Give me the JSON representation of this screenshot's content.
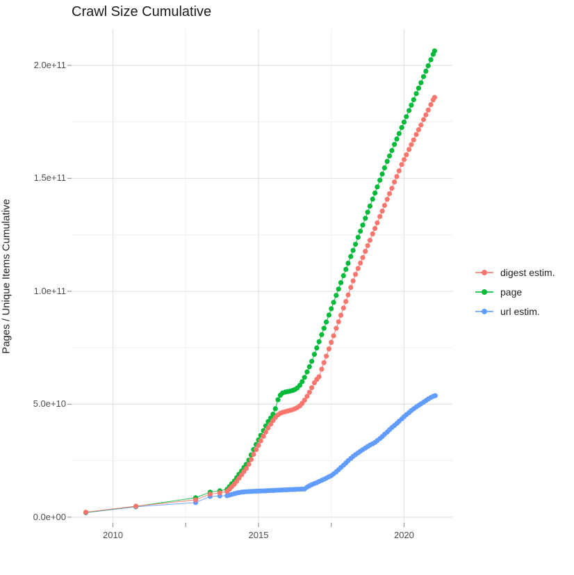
{
  "chart_data": {
    "type": "scatter",
    "title": "Crawl Size Cumulative",
    "xlabel": "",
    "ylabel": "Pages / Unique Items Cumulative",
    "value_unit": "items (point values stored in billions, i.e. 1e9)",
    "xlim": [
      2008.58,
      2021.66
    ],
    "ylim_billions": [
      -2.5,
      216
    ],
    "grid": "major and minor gridlines, light gray on white",
    "legend_position": "right",
    "x_axis": {
      "ticks": [
        {
          "v": 2010,
          "label": "2010"
        },
        {
          "v": 2015,
          "label": "2015"
        },
        {
          "v": 2020,
          "label": "2020"
        }
      ],
      "minors": [
        2012.5,
        2017.5
      ]
    },
    "y_axis": {
      "title": "Pages / Unique Items Cumulative",
      "ticks": [
        {
          "v": 0,
          "label": "0.0e+00"
        },
        {
          "v": 50,
          "label": "5.0e+10"
        },
        {
          "v": 100,
          "label": "1.0e+11"
        },
        {
          "v": 150,
          "label": "1.5e+11"
        },
        {
          "v": 200,
          "label": "2.0e+11"
        }
      ],
      "minors": [
        25,
        75,
        125,
        175
      ]
    },
    "draw_order": [
      2,
      1,
      0
    ],
    "series": [
      {
        "name": "digest estim.",
        "color": "#F8766D",
        "points": [
          [
            2009.07,
            2.2
          ],
          [
            2010.79,
            4.9
          ],
          [
            2012.84,
            7.7
          ],
          [
            2013.34,
            10.2
          ],
          [
            2013.67,
            10.8
          ],
          [
            2013.92,
            11.4
          ],
          [
            2014.0,
            12.4
          ],
          [
            2014.08,
            13.5
          ],
          [
            2014.17,
            14.6
          ],
          [
            2014.25,
            15.9
          ],
          [
            2014.33,
            17.3
          ],
          [
            2014.42,
            18.8
          ],
          [
            2014.5,
            20.2
          ],
          [
            2014.58,
            21.6
          ],
          [
            2014.67,
            23.4
          ],
          [
            2014.75,
            25.5
          ],
          [
            2014.83,
            27.8
          ],
          [
            2014.92,
            29.9
          ],
          [
            2015.0,
            31.8
          ],
          [
            2015.08,
            33.8
          ],
          [
            2015.17,
            35.8
          ],
          [
            2015.25,
            37.7
          ],
          [
            2015.33,
            39.5
          ],
          [
            2015.42,
            41.2
          ],
          [
            2015.5,
            42.8
          ],
          [
            2015.58,
            44.2
          ],
          [
            2015.67,
            45.3
          ],
          [
            2015.75,
            46.0
          ],
          [
            2015.83,
            46.4
          ],
          [
            2015.92,
            46.7
          ],
          [
            2016.0,
            47.0
          ],
          [
            2016.08,
            47.3
          ],
          [
            2016.17,
            47.6
          ],
          [
            2016.25,
            48.0
          ],
          [
            2016.33,
            48.5
          ],
          [
            2016.42,
            49.3
          ],
          [
            2016.5,
            50.4
          ],
          [
            2016.58,
            51.8
          ],
          [
            2016.67,
            53.5
          ],
          [
            2016.75,
            55.3
          ],
          [
            2016.83,
            57.3
          ],
          [
            2016.92,
            59.5
          ],
          [
            2017.0,
            61.0
          ],
          [
            2017.08,
            62.2
          ],
          [
            2017.17,
            65.5
          ],
          [
            2017.25,
            68.4
          ],
          [
            2017.33,
            71.3
          ],
          [
            2017.42,
            74.5
          ],
          [
            2017.5,
            77.4
          ],
          [
            2017.58,
            80.3
          ],
          [
            2017.67,
            83.6
          ],
          [
            2017.75,
            86.5
          ],
          [
            2017.83,
            89.4
          ],
          [
            2017.92,
            92.6
          ],
          [
            2018.0,
            95.5
          ],
          [
            2018.08,
            98.4
          ],
          [
            2018.17,
            101.7
          ],
          [
            2018.25,
            104.6
          ],
          [
            2018.33,
            107.5
          ],
          [
            2018.42,
            110.1
          ],
          [
            2018.5,
            112.5
          ],
          [
            2018.58,
            114.9
          ],
          [
            2018.67,
            117.7
          ],
          [
            2018.75,
            120.2
          ],
          [
            2018.83,
            122.6
          ],
          [
            2018.92,
            125.4
          ],
          [
            2019.0,
            127.8
          ],
          [
            2019.08,
            130.3
          ],
          [
            2019.17,
            133.1
          ],
          [
            2019.25,
            135.5
          ],
          [
            2019.33,
            138.0
          ],
          [
            2019.42,
            140.7
          ],
          [
            2019.5,
            143.2
          ],
          [
            2019.58,
            145.6
          ],
          [
            2019.67,
            148.4
          ],
          [
            2019.75,
            150.8
          ],
          [
            2019.83,
            153.3
          ],
          [
            2019.92,
            156.1
          ],
          [
            2020.0,
            158.3
          ],
          [
            2020.08,
            160.4
          ],
          [
            2020.17,
            162.8
          ],
          [
            2020.25,
            164.9
          ],
          [
            2020.33,
            167.0
          ],
          [
            2020.42,
            169.4
          ],
          [
            2020.5,
            171.5
          ],
          [
            2020.58,
            173.6
          ],
          [
            2020.67,
            176.0
          ],
          [
            2020.75,
            178.1
          ],
          [
            2020.83,
            180.2
          ],
          [
            2020.92,
            182.6
          ],
          [
            2021.0,
            184.7
          ],
          [
            2021.05,
            185.8
          ]
        ]
      },
      {
        "name": "page",
        "color": "#00BA38",
        "points": [
          [
            2009.07,
            2.1
          ],
          [
            2010.79,
            4.8
          ],
          [
            2012.84,
            8.6
          ],
          [
            2013.34,
            11.1
          ],
          [
            2013.67,
            11.7
          ],
          [
            2013.92,
            12.3
          ],
          [
            2014.0,
            13.5
          ],
          [
            2014.08,
            14.8
          ],
          [
            2014.17,
            16.0
          ],
          [
            2014.25,
            17.5
          ],
          [
            2014.33,
            19.0
          ],
          [
            2014.42,
            20.5
          ],
          [
            2014.5,
            22.0
          ],
          [
            2014.58,
            23.4
          ],
          [
            2014.67,
            25.3
          ],
          [
            2014.75,
            27.6
          ],
          [
            2014.83,
            30.0
          ],
          [
            2014.92,
            32.2
          ],
          [
            2015.0,
            34.2
          ],
          [
            2015.08,
            36.2
          ],
          [
            2015.17,
            38.3
          ],
          [
            2015.25,
            40.4
          ],
          [
            2015.33,
            42.3
          ],
          [
            2015.42,
            43.9
          ],
          [
            2015.5,
            45.6
          ],
          [
            2015.58,
            48.0
          ],
          [
            2015.67,
            52.0
          ],
          [
            2015.75,
            54.0
          ],
          [
            2015.83,
            55.0
          ],
          [
            2015.92,
            55.4
          ],
          [
            2016.0,
            55.6
          ],
          [
            2016.08,
            55.8
          ],
          [
            2016.17,
            56.1
          ],
          [
            2016.25,
            56.5
          ],
          [
            2016.33,
            57.2
          ],
          [
            2016.42,
            58.4
          ],
          [
            2016.5,
            60.0
          ],
          [
            2016.58,
            61.9
          ],
          [
            2016.67,
            64.3
          ],
          [
            2016.75,
            66.6
          ],
          [
            2016.83,
            69.0
          ],
          [
            2016.92,
            72.1
          ],
          [
            2017.0,
            74.9
          ],
          [
            2017.08,
            77.7
          ],
          [
            2017.17,
            80.8
          ],
          [
            2017.25,
            83.6
          ],
          [
            2017.33,
            86.4
          ],
          [
            2017.42,
            89.5
          ],
          [
            2017.5,
            92.3
          ],
          [
            2017.58,
            95.1
          ],
          [
            2017.67,
            98.2
          ],
          [
            2017.75,
            101.0
          ],
          [
            2017.83,
            103.8
          ],
          [
            2017.92,
            106.9
          ],
          [
            2018.0,
            109.7
          ],
          [
            2018.08,
            112.4
          ],
          [
            2018.17,
            115.4
          ],
          [
            2018.25,
            118.1
          ],
          [
            2018.33,
            120.8
          ],
          [
            2018.42,
            123.9
          ],
          [
            2018.5,
            126.6
          ],
          [
            2018.58,
            129.3
          ],
          [
            2018.67,
            132.3
          ],
          [
            2018.75,
            135.0
          ],
          [
            2018.83,
            137.7
          ],
          [
            2018.92,
            140.8
          ],
          [
            2019.0,
            143.5
          ],
          [
            2019.08,
            146.2
          ],
          [
            2019.17,
            149.2
          ],
          [
            2019.25,
            151.9
          ],
          [
            2019.33,
            154.6
          ],
          [
            2019.42,
            157.5
          ],
          [
            2019.5,
            159.9
          ],
          [
            2019.58,
            162.3
          ],
          [
            2019.67,
            165.0
          ],
          [
            2019.75,
            167.4
          ],
          [
            2019.83,
            169.8
          ],
          [
            2019.92,
            172.5
          ],
          [
            2020.0,
            174.9
          ],
          [
            2020.08,
            177.3
          ],
          [
            2020.17,
            180.0
          ],
          [
            2020.25,
            182.4
          ],
          [
            2020.33,
            184.8
          ],
          [
            2020.42,
            187.5
          ],
          [
            2020.5,
            189.9
          ],
          [
            2020.58,
            192.3
          ],
          [
            2020.67,
            195.0
          ],
          [
            2020.75,
            197.4
          ],
          [
            2020.83,
            199.8
          ],
          [
            2020.92,
            202.5
          ],
          [
            2021.0,
            204.9
          ],
          [
            2021.05,
            206.4
          ]
        ]
      },
      {
        "name": "url estim.",
        "color": "#619CFF",
        "points": [
          [
            2009.07,
            2.0
          ],
          [
            2010.79,
            4.6
          ],
          [
            2012.84,
            6.5
          ],
          [
            2013.34,
            9.2
          ],
          [
            2013.67,
            9.4
          ],
          [
            2013.92,
            9.5
          ],
          [
            2014.0,
            9.8
          ],
          [
            2014.08,
            10.1
          ],
          [
            2014.17,
            10.4
          ],
          [
            2014.25,
            10.7
          ],
          [
            2014.33,
            10.9
          ],
          [
            2014.42,
            11.1
          ],
          [
            2014.5,
            11.2
          ],
          [
            2014.58,
            11.3
          ],
          [
            2014.67,
            11.35
          ],
          [
            2014.75,
            11.4
          ],
          [
            2014.83,
            11.45
          ],
          [
            2014.92,
            11.5
          ],
          [
            2015.0,
            11.55
          ],
          [
            2015.08,
            11.6
          ],
          [
            2015.17,
            11.65
          ],
          [
            2015.25,
            11.7
          ],
          [
            2015.33,
            11.75
          ],
          [
            2015.42,
            11.8
          ],
          [
            2015.5,
            11.85
          ],
          [
            2015.58,
            11.9
          ],
          [
            2015.67,
            11.95
          ],
          [
            2015.75,
            12.0
          ],
          [
            2015.83,
            12.05
          ],
          [
            2015.92,
            12.1
          ],
          [
            2016.0,
            12.15
          ],
          [
            2016.08,
            12.2
          ],
          [
            2016.17,
            12.25
          ],
          [
            2016.25,
            12.3
          ],
          [
            2016.33,
            12.35
          ],
          [
            2016.42,
            12.4
          ],
          [
            2016.5,
            12.45
          ],
          [
            2016.58,
            12.5
          ],
          [
            2016.67,
            13.3
          ],
          [
            2016.75,
            13.9
          ],
          [
            2016.83,
            14.4
          ],
          [
            2016.92,
            14.9
          ],
          [
            2017.0,
            15.3
          ],
          [
            2017.08,
            15.8
          ],
          [
            2017.17,
            16.3
          ],
          [
            2017.25,
            16.8
          ],
          [
            2017.33,
            17.3
          ],
          [
            2017.42,
            17.9
          ],
          [
            2017.5,
            18.4
          ],
          [
            2017.58,
            19.2
          ],
          [
            2017.67,
            20.1
          ],
          [
            2017.75,
            21.0
          ],
          [
            2017.83,
            22.0
          ],
          [
            2017.92,
            23.0
          ],
          [
            2018.0,
            24.0
          ],
          [
            2018.08,
            25.0
          ],
          [
            2018.17,
            26.0
          ],
          [
            2018.25,
            26.9
          ],
          [
            2018.33,
            27.7
          ],
          [
            2018.42,
            28.5
          ],
          [
            2018.5,
            29.2
          ],
          [
            2018.58,
            29.9
          ],
          [
            2018.67,
            30.6
          ],
          [
            2018.75,
            31.3
          ],
          [
            2018.83,
            31.9
          ],
          [
            2018.92,
            32.5
          ],
          [
            2019.0,
            33.1
          ],
          [
            2019.08,
            33.9
          ],
          [
            2019.17,
            34.8
          ],
          [
            2019.25,
            35.7
          ],
          [
            2019.33,
            36.7
          ],
          [
            2019.42,
            37.7
          ],
          [
            2019.5,
            38.7
          ],
          [
            2019.58,
            39.7
          ],
          [
            2019.67,
            40.6
          ],
          [
            2019.75,
            41.5
          ],
          [
            2019.83,
            42.5
          ],
          [
            2019.92,
            43.5
          ],
          [
            2020.0,
            44.5
          ],
          [
            2020.08,
            45.4
          ],
          [
            2020.17,
            46.3
          ],
          [
            2020.25,
            47.2
          ],
          [
            2020.33,
            48.0
          ],
          [
            2020.42,
            48.8
          ],
          [
            2020.5,
            49.5
          ],
          [
            2020.58,
            50.2
          ],
          [
            2020.67,
            50.9
          ],
          [
            2020.75,
            51.6
          ],
          [
            2020.83,
            52.3
          ],
          [
            2020.92,
            53.0
          ],
          [
            2021.0,
            53.5
          ],
          [
            2021.07,
            53.8
          ]
        ]
      }
    ],
    "colors": {
      "grid_major": "#e2e2e2",
      "grid_minor": "#f0f0f0",
      "tick_mark": "#9a9a9a",
      "axis_text": "#4d4d4d",
      "title_text": "#1a1a1a"
    }
  }
}
